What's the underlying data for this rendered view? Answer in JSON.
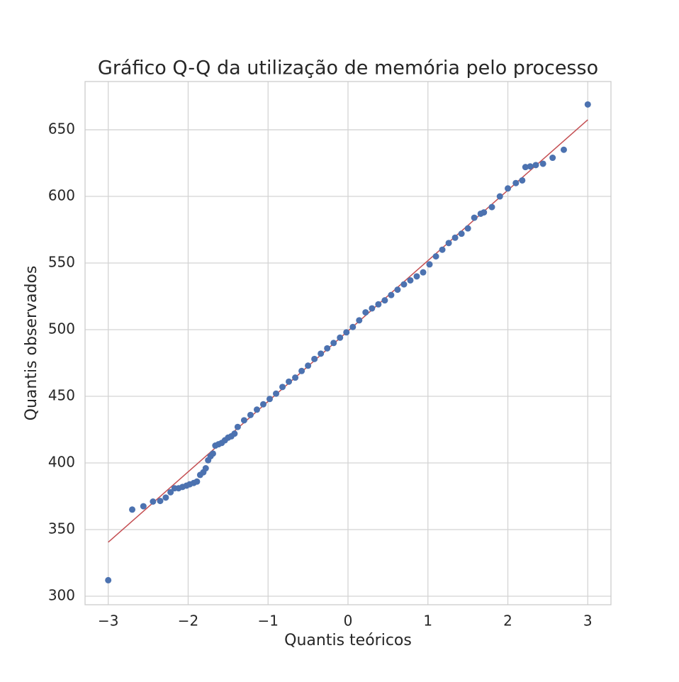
{
  "chart_data": {
    "type": "scatter",
    "title": "Gráfico Q-Q da utilização de memória pelo processo",
    "xlabel": "Quantis teóricos",
    "ylabel": "Quantis observados",
    "x": [
      -3,
      -2.7,
      -2.56,
      -2.44,
      -2.35,
      -2.28,
      -2.22,
      -2.17,
      -2.12,
      -2.07,
      -2.02,
      -1.98,
      -1.93,
      -1.89,
      -1.85,
      -1.81,
      -1.78,
      -1.75,
      -1.72,
      -1.69,
      -1.66,
      -1.62,
      -1.58,
      -1.54,
      -1.5,
      -1.46,
      -1.42,
      -1.38,
      -1.3,
      -1.22,
      -1.14,
      -1.06,
      -0.98,
      -0.9,
      -0.82,
      -0.74,
      -0.66,
      -0.58,
      -0.5,
      -0.42,
      -0.34,
      -0.26,
      -0.18,
      -0.1,
      -0.02,
      0.06,
      0.14,
      0.22,
      0.3,
      0.38,
      0.46,
      0.54,
      0.62,
      0.7,
      0.78,
      0.86,
      0.94,
      1.02,
      1.1,
      1.18,
      1.26,
      1.34,
      1.42,
      1.5,
      1.58,
      1.66,
      1.7,
      1.8,
      1.9,
      2.0,
      2.1,
      2.18,
      2.22,
      2.28,
      2.35,
      2.44,
      2.56,
      2.7,
      3
    ],
    "y": [
      312,
      365,
      367.5,
      371,
      371.5,
      374,
      378,
      381,
      381,
      382,
      383,
      384,
      385,
      386,
      391,
      393,
      396,
      402,
      405,
      407,
      413,
      414,
      415,
      417,
      419,
      420,
      422,
      427,
      432,
      436,
      440,
      444,
      448,
      452,
      457,
      461,
      464,
      469,
      473,
      478,
      482,
      486,
      490,
      494,
      498,
      502,
      507,
      513,
      516,
      519,
      522,
      526,
      530,
      534,
      537,
      540,
      543,
      549,
      555,
      560,
      565,
      569,
      572,
      576,
      584,
      587,
      588,
      592,
      600,
      606,
      610,
      612,
      622,
      622.5,
      623.5,
      624.5,
      629,
      635,
      669
    ],
    "color": "#4c72b0",
    "reference_line": {
      "x": [
        -3,
        3
      ],
      "y": [
        340.5,
        657.5
      ],
      "color": "#c44e52"
    },
    "xlim": [
      -3.29,
      3.29
    ],
    "ylim": [
      293.6,
      686.2
    ],
    "xticks": [
      {
        "value": -3,
        "label": "−3"
      },
      {
        "value": -2,
        "label": "−2"
      },
      {
        "value": -1,
        "label": "−1"
      },
      0,
      1,
      2,
      3
    ],
    "yticks": [
      300,
      350,
      400,
      450,
      500,
      550,
      600,
      650
    ],
    "grid": true
  }
}
